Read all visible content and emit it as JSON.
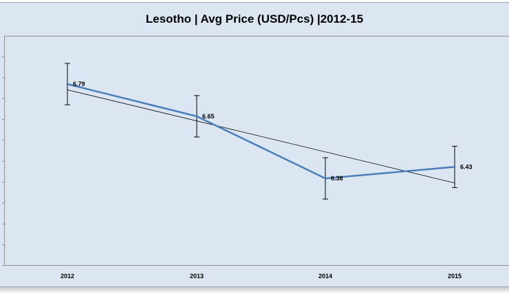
{
  "chart_data": {
    "type": "line",
    "title": "Lesotho | Avg Price (USD/Pcs) |2012-15",
    "categories": [
      "2012",
      "2013",
      "2014",
      "2015"
    ],
    "series": [
      {
        "values": [
          6.79,
          6.65,
          6.38,
          6.43
        ],
        "data_labels": [
          "6.79",
          "6.65",
          "6.38",
          "6.43"
        ],
        "error": 0.09,
        "color": "#4a7ebb"
      }
    ],
    "trendline": {
      "type": "linear",
      "color": "#000000"
    },
    "ylim": [
      6.0,
      7.0
    ],
    "grid": false,
    "legend": "none"
  }
}
